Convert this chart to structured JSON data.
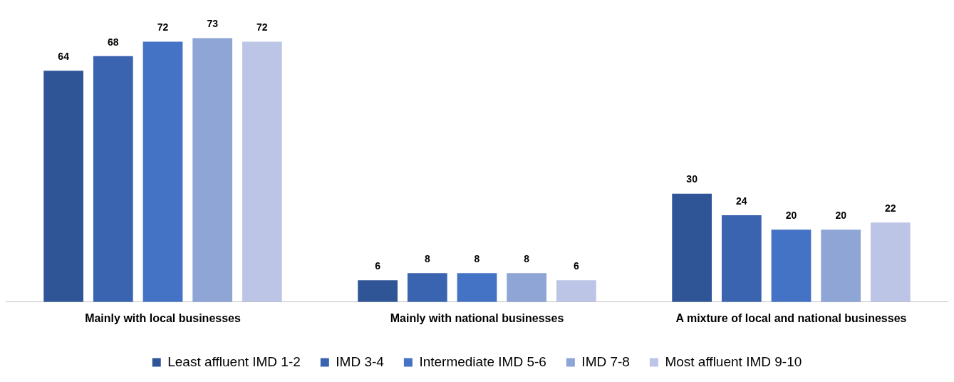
{
  "chart_data": {
    "type": "bar",
    "categories": [
      "Mainly with local businesses",
      "Mainly with national businesses",
      "A mixture of local and national businesses"
    ],
    "series": [
      {
        "name": "Least affluent IMD 1-2",
        "color": "#2f5597",
        "values": [
          64,
          6,
          30
        ]
      },
      {
        "name": "IMD 3-4",
        "color": "#3a63b0",
        "values": [
          68,
          8,
          24
        ]
      },
      {
        "name": "Intermediate IMD 5-6",
        "color": "#4472c4",
        "values": [
          72,
          8,
          20
        ]
      },
      {
        "name": "IMD 7-8",
        "color": "#8fa5d6",
        "values": [
          73,
          8,
          20
        ]
      },
      {
        "name": "Most affluent IMD 9-10",
        "color": "#bcc5e6",
        "values": [
          72,
          6,
          22
        ]
      }
    ],
    "data_labels": true,
    "legend": "bottom",
    "grid": false
  }
}
